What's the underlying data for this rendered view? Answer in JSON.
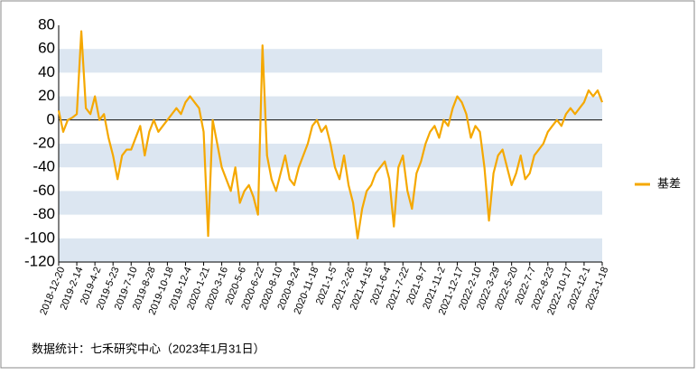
{
  "chart_data": {
    "type": "line",
    "source": "数据统计：七禾研究中心（2023年1月31日）",
    "categories": [
      "2018-12-20",
      null,
      null,
      null,
      "2019-2-14",
      null,
      null,
      null,
      "2019-4-2",
      null,
      null,
      null,
      "2019-5-23",
      null,
      null,
      null,
      "2019-7-10",
      null,
      null,
      null,
      "2019-8-28",
      null,
      null,
      null,
      "2019-10-18",
      null,
      null,
      null,
      "2019-12-4",
      null,
      null,
      null,
      "2020-1-21",
      null,
      null,
      null,
      "2020-3-16",
      null,
      null,
      null,
      "2020-5-6",
      null,
      null,
      null,
      "2020-6-22",
      null,
      null,
      null,
      "2020-8-10",
      null,
      null,
      null,
      "2020-9-24",
      null,
      null,
      null,
      "2020-11-18",
      null,
      null,
      null,
      "2021-1-5",
      null,
      null,
      null,
      "2021-2-26",
      null,
      null,
      null,
      "2021-4-15",
      null,
      null,
      null,
      "2021-6-4",
      null,
      null,
      null,
      "2021-7-22",
      null,
      null,
      null,
      "2021-9-7",
      null,
      null,
      null,
      "2021-11-2",
      null,
      null,
      null,
      "2021-12-17",
      null,
      null,
      null,
      "2022-2-10",
      null,
      null,
      null,
      "2022-3-29",
      null,
      null,
      null,
      "2022-5-20",
      null,
      null,
      null,
      "2022-7-7",
      null,
      null,
      null,
      "2022-8-23",
      null,
      null,
      null,
      "2022-10-17",
      null,
      null,
      null,
      "2022-12-1",
      null,
      null,
      null,
      "2023-1-18"
    ],
    "series": [
      {
        "name": "基差",
        "color": "#f5a800",
        "values": [
          8,
          -10,
          0,
          2,
          5,
          75,
          10,
          5,
          20,
          0,
          5,
          -15,
          -30,
          -50,
          -30,
          -25,
          -25,
          -15,
          -5,
          -30,
          -10,
          0,
          -10,
          -5,
          0,
          5,
          10,
          5,
          15,
          20,
          15,
          10,
          -10,
          -98,
          0,
          -20,
          -40,
          -50,
          -60,
          -40,
          -70,
          -60,
          -55,
          -65,
          -80,
          63,
          -30,
          -50,
          -60,
          -45,
          -30,
          -50,
          -55,
          -40,
          -30,
          -20,
          -5,
          0,
          -10,
          -5,
          -20,
          -40,
          -50,
          -30,
          -55,
          -70,
          -100,
          -75,
          -60,
          -55,
          -45,
          -40,
          -35,
          -50,
          -90,
          -40,
          -30,
          -60,
          -75,
          -45,
          -35,
          -20,
          -10,
          -5,
          -15,
          0,
          -5,
          10,
          20,
          15,
          5,
          -15,
          -5,
          -10,
          -40,
          -85,
          -45,
          -30,
          -25,
          -40,
          -55,
          -45,
          -30,
          -50,
          -45,
          -30,
          -25,
          -20,
          -10,
          -5,
          0,
          -5,
          5,
          10,
          5,
          10,
          15,
          25,
          20,
          25,
          15
        ]
      }
    ],
    "ylim": [
      -120,
      80
    ],
    "yticks": [
      -120,
      -100,
      -80,
      -60,
      -40,
      -20,
      0,
      20,
      40,
      60,
      80
    ],
    "grid": "bands",
    "band_color": "#dce6f1",
    "legend": "right"
  }
}
